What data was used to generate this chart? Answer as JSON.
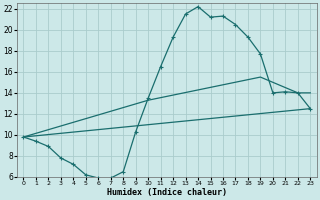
{
  "xlabel": "Humidex (Indice chaleur)",
  "bg_color": "#cce8e8",
  "grid_color": "#aacccc",
  "line_color": "#1a6e6e",
  "xlim": [
    -0.5,
    23.5
  ],
  "ylim": [
    6,
    22.5
  ],
  "xtick_labels": [
    "0",
    "1",
    "2",
    "3",
    "4",
    "5",
    "6",
    "7",
    "8",
    "9",
    "10",
    "11",
    "12",
    "13",
    "14",
    "15",
    "16",
    "17",
    "18",
    "19",
    "20",
    "21",
    "22",
    "23"
  ],
  "ytick_vals": [
    6,
    8,
    10,
    12,
    14,
    16,
    18,
    20,
    22
  ],
  "line1_x": [
    0,
    1,
    2,
    3,
    4,
    5,
    6,
    7,
    8,
    9,
    10,
    11,
    12,
    13,
    14,
    15,
    16,
    17,
    18,
    19,
    20,
    21,
    22,
    23
  ],
  "line1_y": [
    9.8,
    9.4,
    8.9,
    7.8,
    7.2,
    6.2,
    5.9,
    5.9,
    6.5,
    10.3,
    13.5,
    16.5,
    19.3,
    21.5,
    22.2,
    21.2,
    21.3,
    20.5,
    19.3,
    17.7,
    14.0,
    14.1,
    14.0,
    12.5
  ],
  "line2_x": [
    0,
    10,
    19,
    22,
    23
  ],
  "line2_y": [
    9.8,
    13.3,
    15.5,
    14.0,
    14.0
  ],
  "line3_x": [
    0,
    23
  ],
  "line3_y": [
    9.8,
    12.5
  ]
}
